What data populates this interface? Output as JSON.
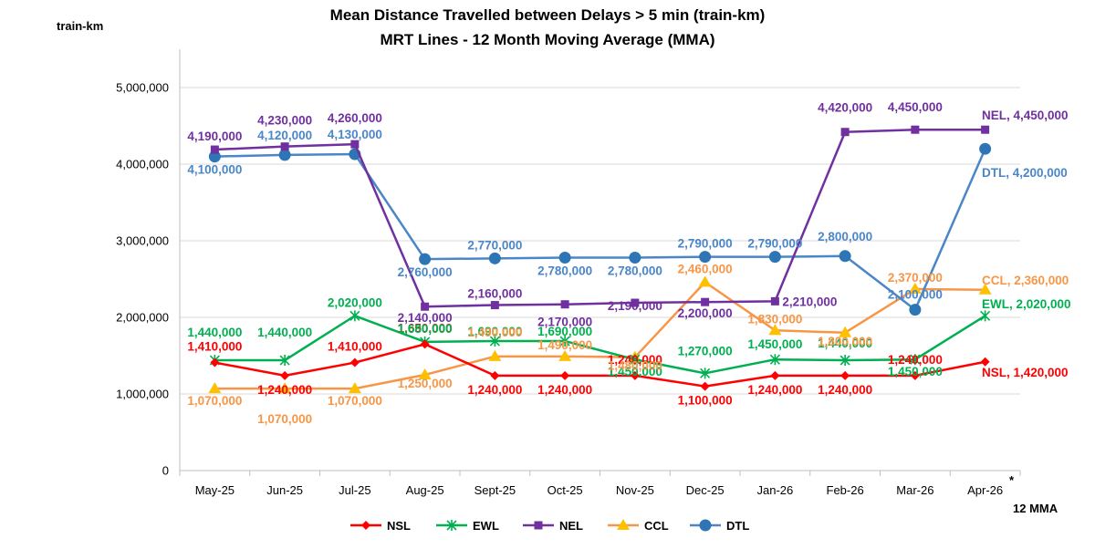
{
  "chart_data": {
    "type": "line",
    "title": "Mean Distance Travelled between Delays > 5 min (train-km)",
    "subtitle": "MRT Lines - 12 Month Moving Average (MMA)",
    "ylabel": "train-km",
    "xlabel": "12 MMA",
    "footnote_mark": "*",
    "ylim": [
      0,
      5500000
    ],
    "y_ticks": [
      0,
      1000000,
      2000000,
      3000000,
      4000000,
      5000000
    ],
    "y_tick_labels": [
      "0",
      "1,000,000",
      "2,000,000",
      "3,000,000",
      "4,000,000",
      "5,000,000"
    ],
    "grid": true,
    "legend_position": "bottom",
    "categories": [
      "May-25",
      "Jun-25",
      "Jul-25",
      "Aug-25",
      "Sept-25",
      "Oct-25",
      "Nov-25",
      "Dec-25",
      "Jan-26",
      "Feb-26",
      "Mar-26",
      "Apr-26"
    ],
    "series": [
      {
        "name": "NSL",
        "color": "#FF0000",
        "marker": "diamond",
        "values": [
          1410000,
          1240000,
          1410000,
          1650000,
          1240000,
          1240000,
          1240000,
          1100000,
          1240000,
          1240000,
          1240000,
          1420000
        ],
        "labels": [
          "1,410,000",
          "1,240,000",
          "1,410,000",
          "1,650,000",
          "1,240,000",
          "1,240,000",
          "1,240,000",
          "1,100,000",
          "1,240,000",
          "1,240,000",
          "1,240,000",
          "NSL, 1,420,000"
        ]
      },
      {
        "name": "EWL",
        "color": "#00B050",
        "marker": "star",
        "values": [
          1440000,
          1440000,
          2020000,
          1680000,
          1690000,
          1690000,
          1450000,
          1270000,
          1450000,
          1440000,
          1450000,
          2020000
        ],
        "labels": [
          "1,440,000",
          "1,440,000",
          "2,020,000",
          "1,680,000",
          "1,690,000",
          "1,690,000",
          "1,450,000",
          "1,270,000",
          "1,450,000",
          "1,440,000",
          "1,450,000",
          "EWL, 2,020,000"
        ]
      },
      {
        "name": "NEL",
        "color": "#7030A0",
        "marker": "square",
        "values": [
          4190000,
          4230000,
          4260000,
          2140000,
          2160000,
          2170000,
          2190000,
          2200000,
          2210000,
          4420000,
          4450000,
          4450000
        ],
        "labels": [
          "4,190,000",
          "4,230,000",
          "4,260,000",
          "2,140,000",
          "2,160,000",
          "2,170,000",
          "2,190,000",
          "2,200,000",
          "2,210,000",
          "4,420,000",
          "4,450,000",
          "NEL, 4,450,000"
        ]
      },
      {
        "name": "CCL",
        "color": "#F79646",
        "marker": "triangle",
        "marker_color": "#FFC000",
        "values": [
          1070000,
          1070000,
          1070000,
          1250000,
          1490000,
          1490000,
          1480000,
          2460000,
          1830000,
          1800000,
          2370000,
          2360000
        ],
        "labels": [
          "1,070,000",
          "1,070,000",
          "1,070,000",
          "1,250,000",
          "1,490,000",
          "1,490,000",
          "1,480,000",
          "2,460,000",
          "1,830,000",
          "1,800,000",
          "2,370,000",
          "CCL, 2,360,000"
        ]
      },
      {
        "name": "DTL",
        "color": "#4A86C8",
        "marker": "circle",
        "marker_color": "#2E75B6",
        "values": [
          4100000,
          4120000,
          4130000,
          2760000,
          2770000,
          2780000,
          2780000,
          2790000,
          2790000,
          2800000,
          2100000,
          4200000
        ],
        "labels": [
          "4,100,000",
          "4,120,000",
          "4,130,000",
          "2,760,000",
          "2,770,000",
          "2,780,000",
          "2,780,000",
          "2,790,000",
          "2,790,000",
          "2,800,000",
          "2,100,000",
          "DTL, 4,200,000"
        ]
      }
    ]
  }
}
